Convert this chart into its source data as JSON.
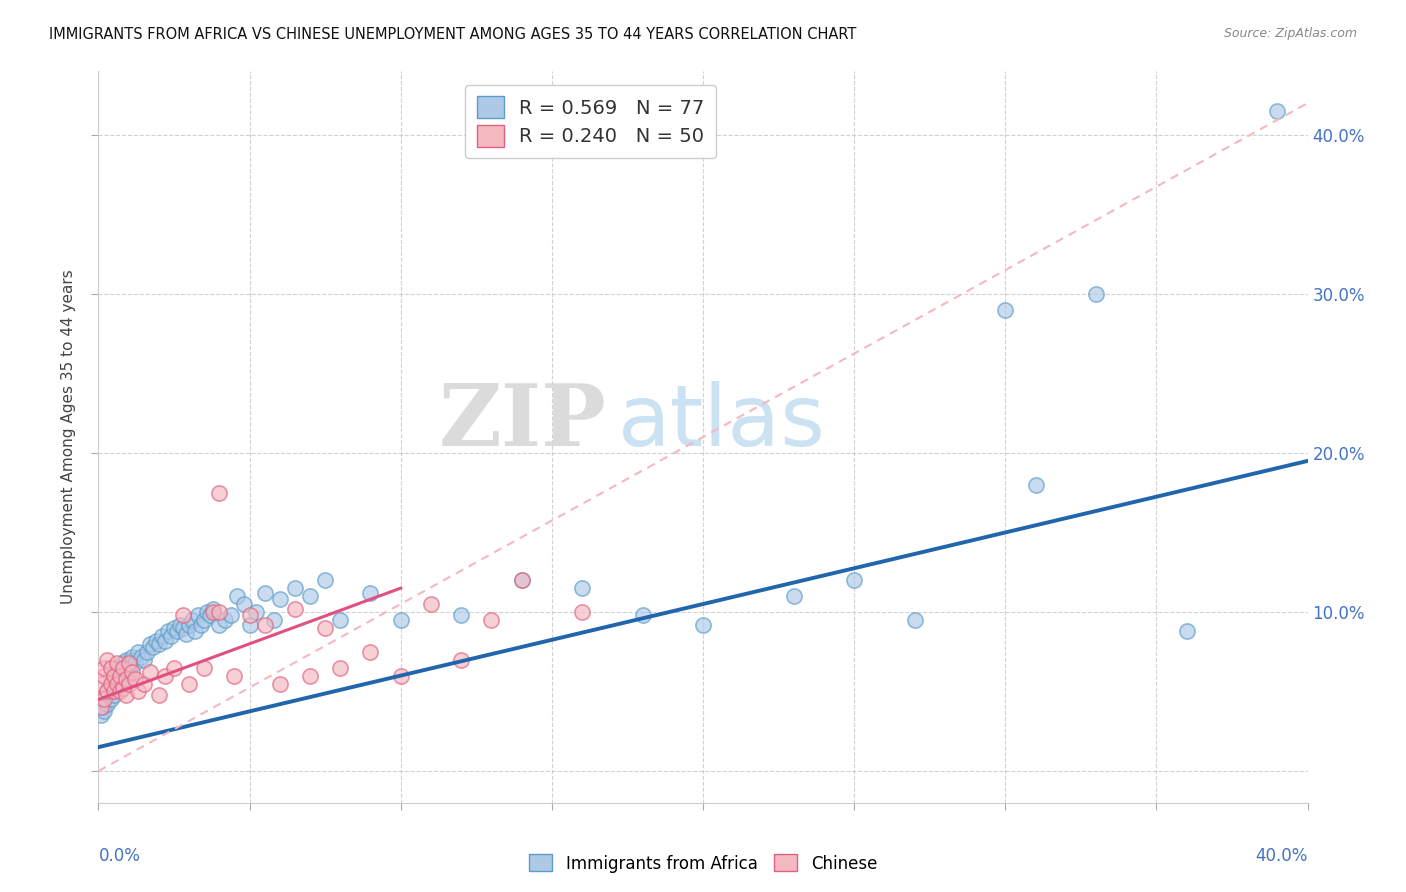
{
  "title": "IMMIGRANTS FROM AFRICA VS CHINESE UNEMPLOYMENT AMONG AGES 35 TO 44 YEARS CORRELATION CHART",
  "source": "Source: ZipAtlas.com",
  "ylabel": "Unemployment Among Ages 35 to 44 years",
  "xlim": [
    0.0,
    0.4
  ],
  "ylim": [
    -0.02,
    0.44
  ],
  "yticks": [
    0.0,
    0.1,
    0.2,
    0.3,
    0.4
  ],
  "ytick_labels": [
    "",
    "10.0%",
    "20.0%",
    "30.0%",
    "40.0%"
  ],
  "africa_color": "#aec9e8",
  "africa_edge": "#5b9dc9",
  "chinese_color": "#f4b8c1",
  "chinese_edge": "#e06080",
  "africa_line_color": "#2166ac",
  "chinese_line_solid_color": "#e05080",
  "chinese_line_dash_color": "#f4b8c1",
  "watermark_ZIP": "ZIP",
  "watermark_atlas": "atlas",
  "legend_africa_label": "R = 0.569   N = 77",
  "legend_chinese_label": "R = 0.240   N = 50",
  "legend_bottom_africa": "Immigrants from Africa",
  "legend_bottom_chinese": "Chinese",
  "africa_scatter_x": [
    0.001,
    0.002,
    0.002,
    0.003,
    0.003,
    0.004,
    0.004,
    0.005,
    0.005,
    0.006,
    0.006,
    0.007,
    0.007,
    0.008,
    0.008,
    0.009,
    0.009,
    0.01,
    0.01,
    0.011,
    0.011,
    0.012,
    0.013,
    0.014,
    0.015,
    0.016,
    0.017,
    0.018,
    0.019,
    0.02,
    0.021,
    0.022,
    0.023,
    0.024,
    0.025,
    0.026,
    0.027,
    0.028,
    0.029,
    0.03,
    0.031,
    0.032,
    0.033,
    0.034,
    0.035,
    0.036,
    0.037,
    0.038,
    0.04,
    0.042,
    0.044,
    0.046,
    0.048,
    0.05,
    0.052,
    0.055,
    0.058,
    0.06,
    0.065,
    0.07,
    0.075,
    0.08,
    0.09,
    0.1,
    0.12,
    0.14,
    0.16,
    0.18,
    0.2,
    0.23,
    0.25,
    0.27,
    0.3,
    0.31,
    0.33,
    0.36,
    0.39
  ],
  "africa_scatter_y": [
    0.035,
    0.04,
    0.038,
    0.042,
    0.05,
    0.045,
    0.055,
    0.048,
    0.06,
    0.052,
    0.062,
    0.058,
    0.065,
    0.055,
    0.068,
    0.06,
    0.07,
    0.062,
    0.065,
    0.07,
    0.072,
    0.068,
    0.075,
    0.072,
    0.07,
    0.075,
    0.08,
    0.078,
    0.082,
    0.08,
    0.085,
    0.082,
    0.088,
    0.085,
    0.09,
    0.088,
    0.092,
    0.09,
    0.086,
    0.092,
    0.095,
    0.088,
    0.098,
    0.092,
    0.095,
    0.1,
    0.098,
    0.102,
    0.092,
    0.095,
    0.098,
    0.11,
    0.105,
    0.092,
    0.1,
    0.112,
    0.095,
    0.108,
    0.115,
    0.11,
    0.12,
    0.095,
    0.112,
    0.095,
    0.098,
    0.12,
    0.115,
    0.098,
    0.092,
    0.11,
    0.12,
    0.095,
    0.29,
    0.18,
    0.3,
    0.088,
    0.415
  ],
  "chinese_scatter_x": [
    0.001,
    0.001,
    0.002,
    0.002,
    0.002,
    0.003,
    0.003,
    0.004,
    0.004,
    0.005,
    0.005,
    0.006,
    0.006,
    0.007,
    0.007,
    0.008,
    0.008,
    0.009,
    0.009,
    0.01,
    0.01,
    0.011,
    0.012,
    0.013,
    0.015,
    0.017,
    0.02,
    0.022,
    0.025,
    0.028,
    0.03,
    0.035,
    0.038,
    0.04,
    0.045,
    0.05,
    0.055,
    0.06,
    0.065,
    0.07,
    0.075,
    0.08,
    0.09,
    0.1,
    0.11,
    0.12,
    0.13,
    0.14,
    0.16,
    0.04
  ],
  "chinese_scatter_y": [
    0.04,
    0.055,
    0.045,
    0.06,
    0.065,
    0.05,
    0.07,
    0.055,
    0.065,
    0.05,
    0.06,
    0.055,
    0.068,
    0.05,
    0.06,
    0.052,
    0.065,
    0.048,
    0.058,
    0.055,
    0.068,
    0.062,
    0.058,
    0.05,
    0.055,
    0.062,
    0.048,
    0.06,
    0.065,
    0.098,
    0.055,
    0.065,
    0.1,
    0.1,
    0.06,
    0.098,
    0.092,
    0.055,
    0.102,
    0.06,
    0.09,
    0.065,
    0.075,
    0.06,
    0.105,
    0.07,
    0.095,
    0.12,
    0.1,
    0.175
  ],
  "africa_line_x0": 0.0,
  "africa_line_y0": 0.015,
  "africa_line_x1": 0.4,
  "africa_line_y1": 0.195,
  "chinese_line_solid_x0": 0.0,
  "chinese_line_solid_y0": 0.045,
  "chinese_line_solid_x1": 0.1,
  "chinese_line_solid_y1": 0.115,
  "chinese_line_dash_x0": 0.0,
  "chinese_line_dash_y0": 0.0,
  "chinese_line_dash_x1": 0.4,
  "chinese_line_dash_y1": 0.42
}
